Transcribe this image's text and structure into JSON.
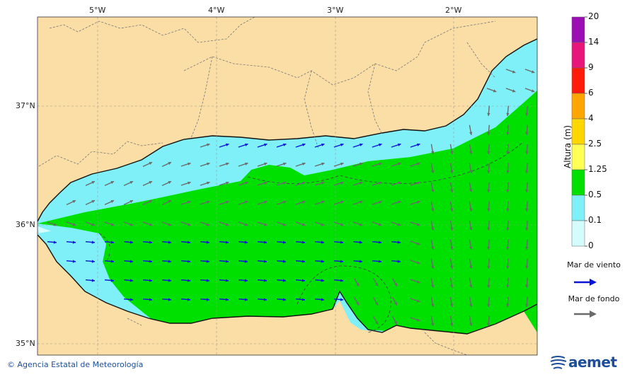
{
  "map": {
    "lon_labels": [
      "5°W",
      "4°W",
      "3°W",
      "2°W"
    ],
    "lat_labels": [
      "37°N",
      "36°N",
      "35°N"
    ]
  },
  "legend": {
    "title": "Altura (m)",
    "levels": [
      "20",
      "14",
      "9",
      "6",
      "4",
      "2.5",
      "1.25",
      "0.5",
      "0.1",
      "0"
    ],
    "bands": [
      {
        "from": "14",
        "to": "20",
        "color": "#9b0eb4"
      },
      {
        "from": "9",
        "to": "14",
        "color": "#e8157a"
      },
      {
        "from": "6",
        "to": "9",
        "color": "#ff1a0a"
      },
      {
        "from": "4",
        "to": "6",
        "color": "#ffa500"
      },
      {
        "from": "2.5",
        "to": "4",
        "color": "#ffd700"
      },
      {
        "from": "1.25",
        "to": "2.5",
        "color": "#ffff55"
      },
      {
        "from": "0.5",
        "to": "1.25",
        "color": "#00e000"
      },
      {
        "from": "0.1",
        "to": "0.5",
        "color": "#80f0f8"
      },
      {
        "from": "0",
        "to": "0.1",
        "color": "#d4fcfc"
      }
    ],
    "wind_sea_label": "Mar de viento",
    "wind_sea_color": "#0a14d8",
    "swell_label": "Mar de fondo",
    "swell_color": "#6a6a6a"
  },
  "footer": {
    "credit": "© Agencia Estatal de Meteorología",
    "brand": "aemet"
  }
}
